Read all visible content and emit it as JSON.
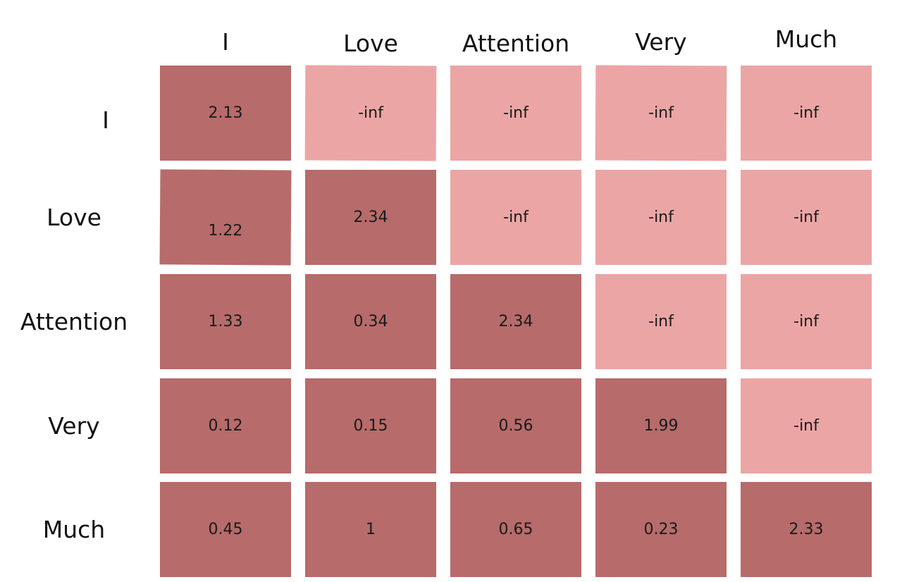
{
  "matrix": {
    "columns": [
      "I",
      "Love",
      "Attention",
      "Very",
      "Much"
    ],
    "rows": [
      "I",
      "Love",
      "Attention",
      "Very",
      "Much"
    ],
    "cells": [
      [
        "2.13",
        "-inf",
        "-inf",
        "-inf",
        "-inf"
      ],
      [
        "1.22",
        "2.34",
        "-inf",
        "-inf",
        "-inf"
      ],
      [
        "1.33",
        "0.34",
        "2.34",
        "-inf",
        "-inf"
      ],
      [
        "0.12",
        "0.15",
        "0.56",
        "1.99",
        "-inf"
      ],
      [
        "0.45",
        "1",
        "0.65",
        "0.23",
        "2.33"
      ]
    ]
  },
  "colors": {
    "active_cell": "#b76b6a",
    "masked_cell": "#eca5a5",
    "text": "#1a1a1a"
  }
}
